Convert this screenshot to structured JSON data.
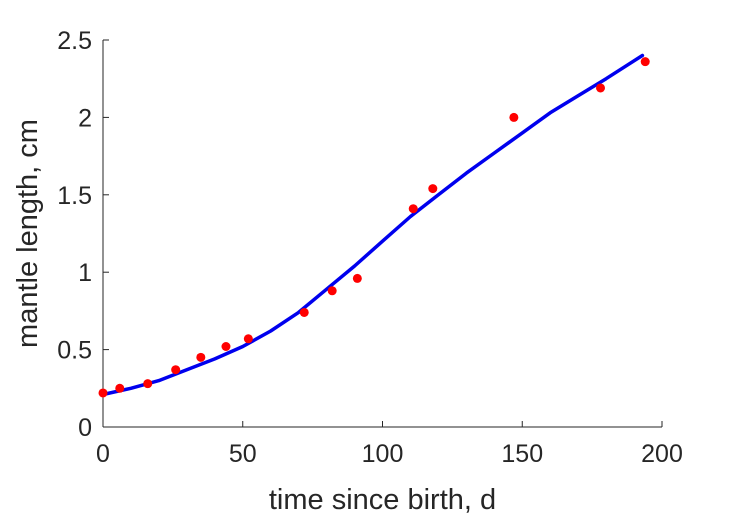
{
  "chart_data": {
    "type": "scatter",
    "xlabel": "time since birth, d",
    "ylabel": "mantle length, cm",
    "xlim": [
      0,
      200
    ],
    "ylim": [
      0,
      2.5
    ],
    "xticks": [
      0,
      50,
      100,
      150,
      200
    ],
    "yticks": [
      0,
      0.5,
      1,
      1.5,
      2,
      2.5
    ],
    "xtick_labels": [
      "0",
      "50",
      "100",
      "150",
      "200"
    ],
    "ytick_labels": [
      "0",
      "0.5",
      "1",
      "1.5",
      "2",
      "2.5"
    ],
    "grid": false,
    "series": [
      {
        "kind": "points",
        "color": "#ff0000",
        "x": [
          0,
          6,
          16,
          26,
          35,
          44,
          52,
          72,
          82,
          91,
          111,
          118,
          147,
          178,
          194
        ],
        "y": [
          0.22,
          0.25,
          0.28,
          0.37,
          0.45,
          0.52,
          0.57,
          0.74,
          0.88,
          0.96,
          1.41,
          1.54,
          2.0,
          2.19,
          2.36
        ]
      },
      {
        "kind": "line",
        "color": "#0000ee",
        "x": [
          0,
          10,
          20,
          30,
          40,
          50,
          60,
          70,
          80,
          90,
          100,
          110,
          120,
          130,
          140,
          150,
          160,
          170,
          180,
          193
        ],
        "y": [
          0.21,
          0.25,
          0.3,
          0.37,
          0.44,
          0.52,
          0.62,
          0.74,
          0.89,
          1.04,
          1.2,
          1.36,
          1.5,
          1.64,
          1.77,
          1.9,
          2.03,
          2.14,
          2.25,
          2.4
        ]
      }
    ]
  }
}
